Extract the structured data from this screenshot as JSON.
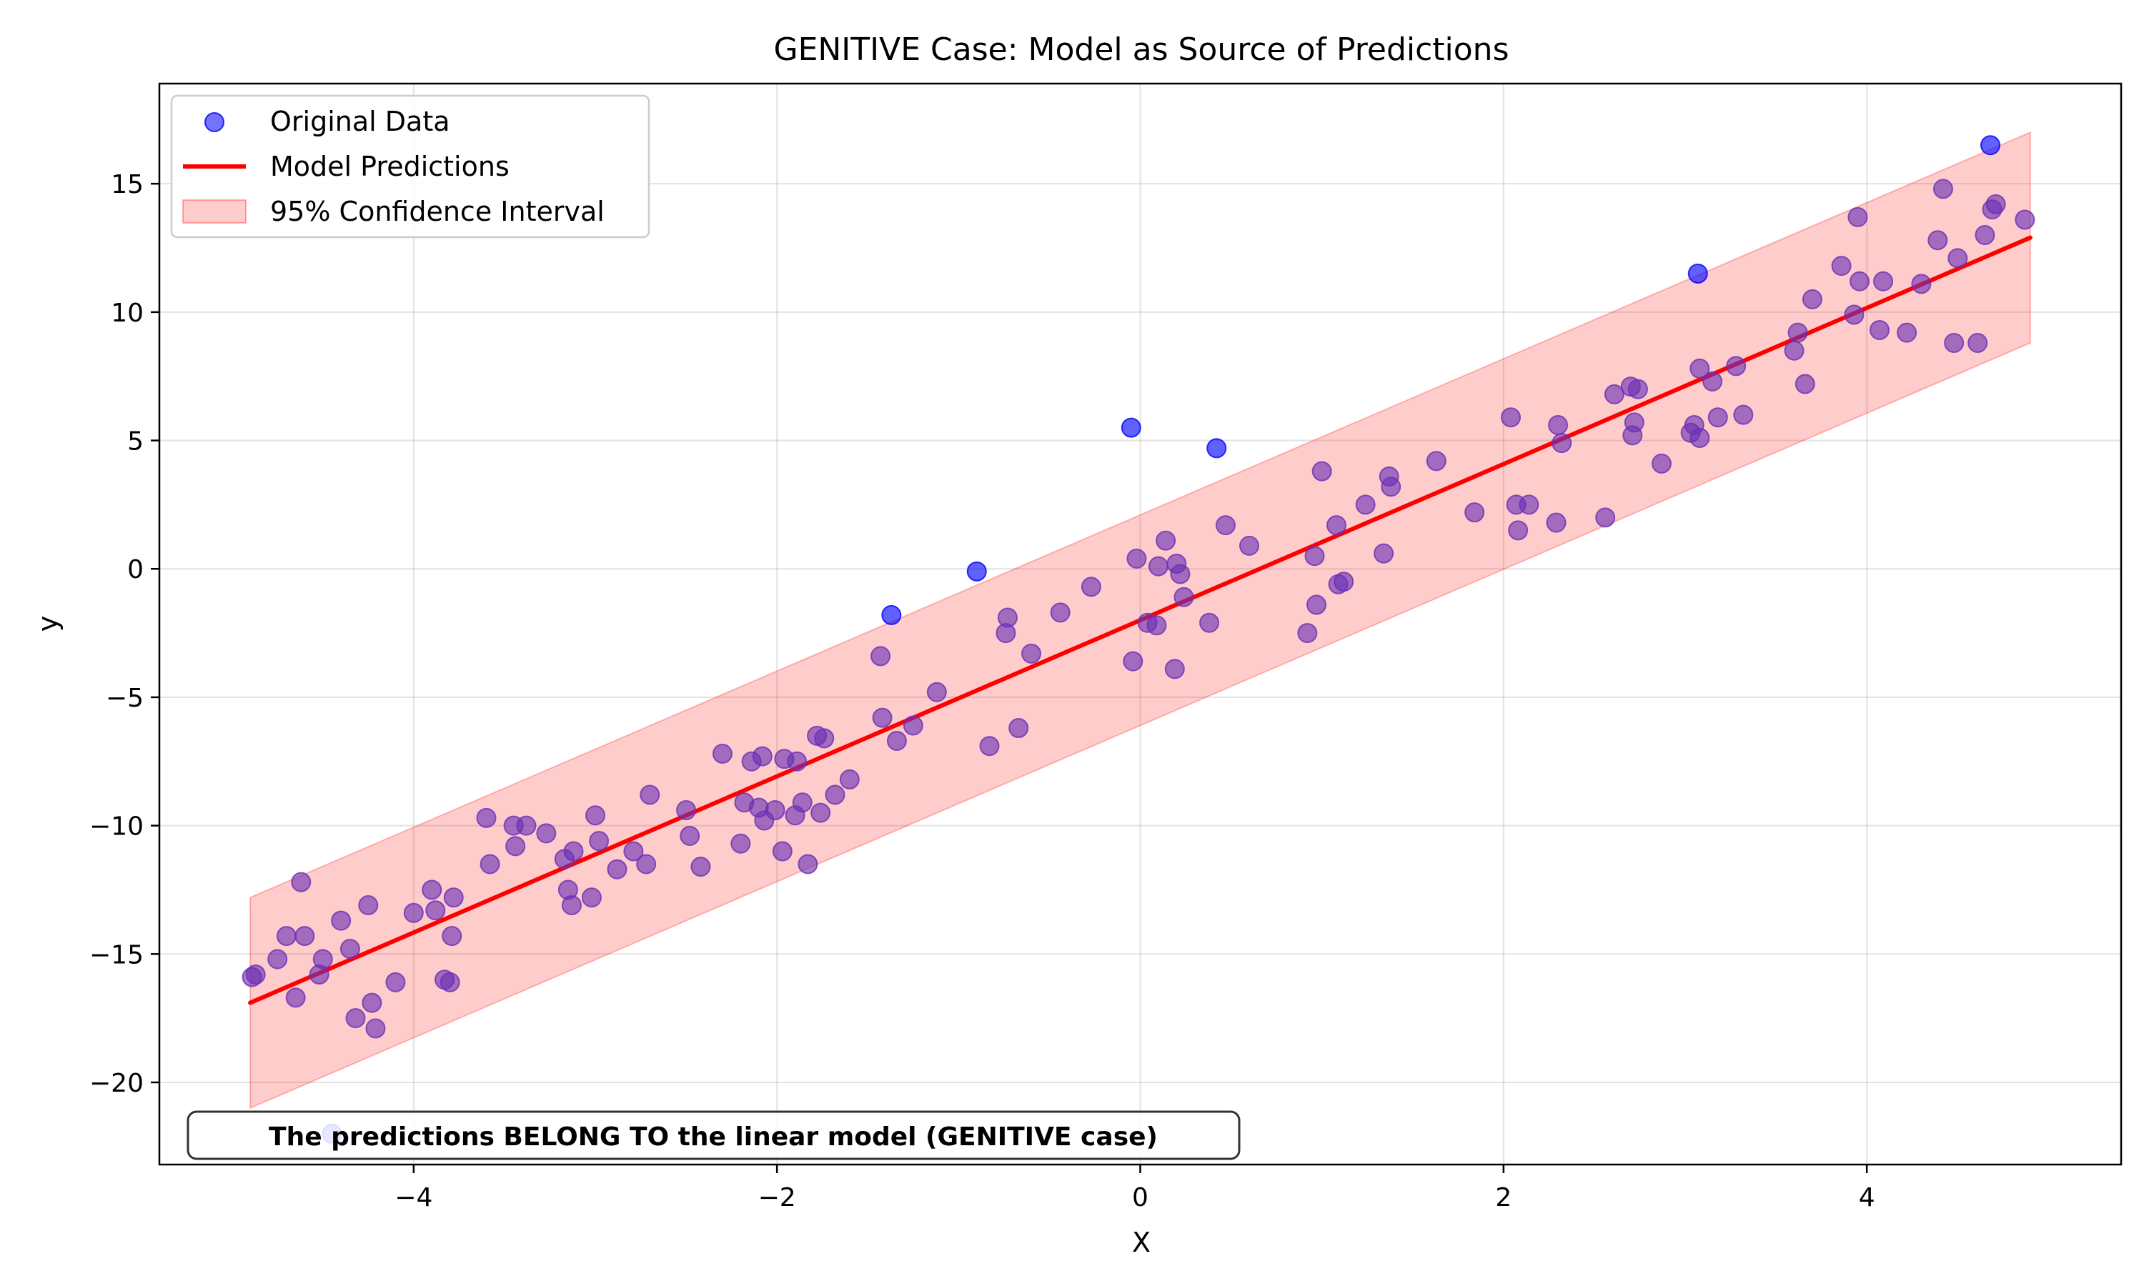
{
  "chart_data": {
    "type": "scatter",
    "title": "GENITIVE Case: Model as Source of Predictions",
    "xlabel": "X",
    "ylabel": "y",
    "xlim": [
      -5.4,
      5.4
    ],
    "ylim": [
      -23.2,
      18.9
    ],
    "xticks": [
      -4,
      -2,
      0,
      2,
      4
    ],
    "yticks": [
      -20,
      -15,
      -10,
      -5,
      0,
      5,
      10,
      15
    ],
    "xtick_labels": [
      "−4",
      "−2",
      "0",
      "2",
      "4"
    ],
    "ytick_labels": [
      "−20",
      "−15",
      "−10",
      "−5",
      "0",
      "5",
      "10",
      "15"
    ],
    "grid": true,
    "legend_position": "top-left",
    "legend": [
      {
        "label": "Original Data",
        "kind": "scatter"
      },
      {
        "label": "Model Predictions",
        "kind": "line"
      },
      {
        "label": "95% Confidence Interval",
        "kind": "band"
      }
    ],
    "annotation": "The predictions BELONG TO the linear model (GENITIVE case)",
    "colors": {
      "scatter": "#0000ff",
      "scatter_in_band": "#6a2fb4",
      "line": "#ff0000",
      "band": "#ff0000"
    },
    "model_line": {
      "x": [
        -4.9,
        4.9
      ],
      "y": [
        -16.9,
        12.9
      ]
    },
    "confidence_band": {
      "x": [
        -4.9,
        4.9
      ],
      "lower": [
        -21.0,
        8.8
      ],
      "upper": [
        -12.8,
        17.0
      ]
    },
    "points": [
      [
        -4.89,
        -15.9
      ],
      [
        -4.87,
        -15.8
      ],
      [
        -4.75,
        -15.2
      ],
      [
        -4.7,
        -14.3
      ],
      [
        -4.65,
        -16.7
      ],
      [
        -4.62,
        -12.2
      ],
      [
        -4.6,
        -14.3
      ],
      [
        -4.52,
        -15.8
      ],
      [
        -4.5,
        -15.2
      ],
      [
        -4.45,
        -22.0
      ],
      [
        -4.4,
        -13.7
      ],
      [
        -4.35,
        -14.8
      ],
      [
        -4.32,
        -17.5
      ],
      [
        -4.25,
        -13.1
      ],
      [
        -4.23,
        -16.9
      ],
      [
        -4.21,
        -17.9
      ],
      [
        -4.1,
        -16.1
      ],
      [
        -4.0,
        -13.4
      ],
      [
        -3.9,
        -12.5
      ],
      [
        -3.88,
        -13.3
      ],
      [
        -3.83,
        -16.0
      ],
      [
        -3.8,
        -16.1
      ],
      [
        -3.79,
        -14.3
      ],
      [
        -3.78,
        -12.8
      ],
      [
        -3.6,
        -9.7
      ],
      [
        -3.58,
        -11.5
      ],
      [
        -3.45,
        -10.0
      ],
      [
        -3.44,
        -10.8
      ],
      [
        -3.38,
        -10.0
      ],
      [
        -3.27,
        -10.3
      ],
      [
        -3.17,
        -11.3
      ],
      [
        -3.15,
        -12.5
      ],
      [
        -3.13,
        -13.1
      ],
      [
        -3.12,
        -11.0
      ],
      [
        -3.02,
        -12.8
      ],
      [
        -3.0,
        -9.6
      ],
      [
        -2.98,
        -10.6
      ],
      [
        -2.88,
        -11.7
      ],
      [
        -2.79,
        -11.0
      ],
      [
        -2.72,
        -11.5
      ],
      [
        -2.7,
        -8.8
      ],
      [
        -2.5,
        -9.4
      ],
      [
        -2.48,
        -10.4
      ],
      [
        -2.42,
        -11.6
      ],
      [
        -2.3,
        -7.2
      ],
      [
        -2.2,
        -10.7
      ],
      [
        -2.18,
        -9.1
      ],
      [
        -2.14,
        -7.5
      ],
      [
        -2.1,
        -9.3
      ],
      [
        -2.08,
        -7.3
      ],
      [
        -2.07,
        -9.8
      ],
      [
        -2.01,
        -9.4
      ],
      [
        -1.97,
        -11.0
      ],
      [
        -1.96,
        -7.4
      ],
      [
        -1.9,
        -9.6
      ],
      [
        -1.89,
        -7.5
      ],
      [
        -1.86,
        -9.1
      ],
      [
        -1.83,
        -11.5
      ],
      [
        -1.78,
        -6.5
      ],
      [
        -1.76,
        -9.5
      ],
      [
        -1.74,
        -6.6
      ],
      [
        -1.68,
        -8.8
      ],
      [
        -1.6,
        -8.2
      ],
      [
        -1.43,
        -3.4
      ],
      [
        -1.42,
        -5.8
      ],
      [
        -1.37,
        -1.8
      ],
      [
        -1.34,
        -6.7
      ],
      [
        -1.25,
        -6.1
      ],
      [
        -1.12,
        -4.8
      ],
      [
        -0.9,
        -0.1
      ],
      [
        -0.83,
        -6.9
      ],
      [
        -0.74,
        -2.5
      ],
      [
        -0.73,
        -1.9
      ],
      [
        -0.67,
        -6.2
      ],
      [
        -0.6,
        -3.3
      ],
      [
        -0.44,
        -1.7
      ],
      [
        -0.27,
        -0.7
      ],
      [
        -0.05,
        5.5
      ],
      [
        -0.04,
        -3.6
      ],
      [
        -0.02,
        0.4
      ],
      [
        0.04,
        -2.1
      ],
      [
        0.09,
        -2.2
      ],
      [
        0.1,
        0.1
      ],
      [
        0.14,
        1.1
      ],
      [
        0.19,
        -3.9
      ],
      [
        0.2,
        0.2
      ],
      [
        0.22,
        -0.2
      ],
      [
        0.24,
        -1.1
      ],
      [
        0.38,
        -2.1
      ],
      [
        0.42,
        4.7
      ],
      [
        0.47,
        1.7
      ],
      [
        0.6,
        0.9
      ],
      [
        0.92,
        -2.5
      ],
      [
        0.96,
        0.5
      ],
      [
        0.97,
        -1.4
      ],
      [
        1.0,
        3.8
      ],
      [
        1.08,
        1.7
      ],
      [
        1.09,
        -0.6
      ],
      [
        1.12,
        -0.5
      ],
      [
        1.24,
        2.5
      ],
      [
        1.34,
        0.6
      ],
      [
        1.37,
        3.6
      ],
      [
        1.38,
        3.2
      ],
      [
        1.63,
        4.2
      ],
      [
        1.84,
        2.2
      ],
      [
        2.04,
        5.9
      ],
      [
        2.07,
        2.5
      ],
      [
        2.08,
        1.5
      ],
      [
        2.14,
        2.5
      ],
      [
        2.29,
        1.8
      ],
      [
        2.3,
        5.6
      ],
      [
        2.32,
        4.9
      ],
      [
        2.56,
        2.0
      ],
      [
        2.61,
        6.8
      ],
      [
        2.7,
        7.1
      ],
      [
        2.71,
        5.2
      ],
      [
        2.72,
        5.7
      ],
      [
        2.74,
        7.0
      ],
      [
        2.87,
        4.1
      ],
      [
        3.03,
        5.3
      ],
      [
        3.05,
        5.6
      ],
      [
        3.07,
        11.5
      ],
      [
        3.08,
        7.8
      ],
      [
        3.08,
        5.1
      ],
      [
        3.15,
        7.3
      ],
      [
        3.18,
        5.9
      ],
      [
        3.28,
        7.9
      ],
      [
        3.32,
        6.0
      ],
      [
        3.6,
        8.5
      ],
      [
        3.62,
        9.2
      ],
      [
        3.66,
        7.2
      ],
      [
        3.7,
        10.5
      ],
      [
        3.86,
        11.8
      ],
      [
        3.93,
        9.9
      ],
      [
        3.95,
        13.7
      ],
      [
        3.96,
        11.2
      ],
      [
        4.07,
        9.3
      ],
      [
        4.09,
        11.2
      ],
      [
        4.22,
        9.2
      ],
      [
        4.3,
        11.1
      ],
      [
        4.39,
        12.8
      ],
      [
        4.42,
        14.8
      ],
      [
        4.48,
        8.8
      ],
      [
        4.5,
        12.1
      ],
      [
        4.61,
        8.8
      ],
      [
        4.65,
        13.0
      ],
      [
        4.68,
        16.5
      ],
      [
        4.69,
        14.0
      ],
      [
        4.71,
        14.2
      ],
      [
        4.87,
        13.6
      ]
    ]
  }
}
